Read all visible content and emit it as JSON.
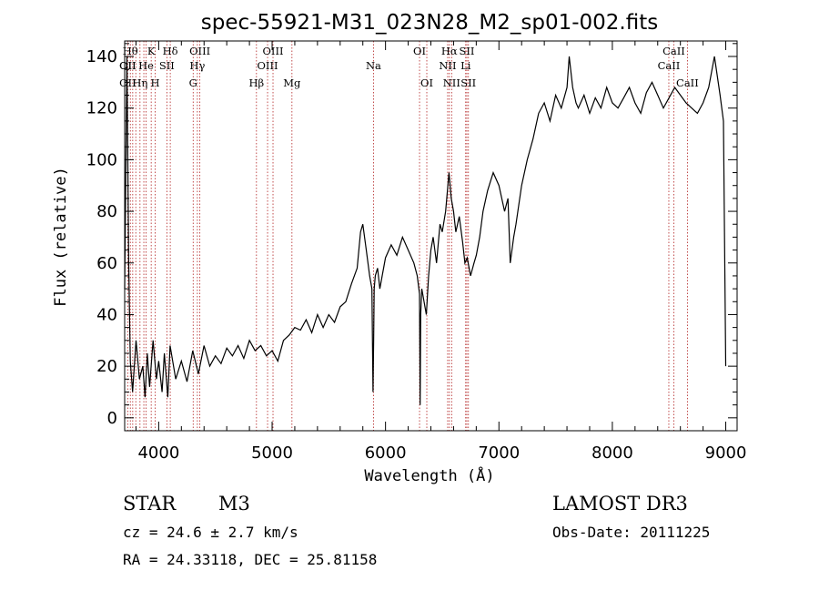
{
  "chart_data": {
    "type": "line",
    "title": "spec-55921-M31_023N28_M2_sp01-002.fits",
    "xlabel": "Wavelength (Å)",
    "ylabel": "Flux (relative)",
    "xlim": [
      3700,
      9100
    ],
    "ylim": [
      -5,
      146
    ],
    "grid": false,
    "xticks": [
      "4000",
      "5000",
      "6000",
      "7000",
      "8000",
      "9000"
    ],
    "yticks": [
      "0",
      "20",
      "40",
      "60",
      "80",
      "100",
      "120",
      "140"
    ],
    "x_tick_values": [
      4000,
      5000,
      6000,
      7000,
      8000,
      9000
    ],
    "y_tick_values": [
      0,
      20,
      40,
      60,
      80,
      100,
      120,
      140
    ],
    "line_color": "#000000",
    "marker_color": "#b22222",
    "series": [
      {
        "x": [
          3700,
          3720,
          3735,
          3750,
          3770,
          3800,
          3830,
          3860,
          3880,
          3900,
          3920,
          3950,
          3980,
          4000,
          4030,
          4050,
          4080,
          4100,
          4150,
          4200,
          4250,
          4300,
          4350,
          4400,
          4450,
          4500,
          4550,
          4600,
          4650,
          4700,
          4750,
          4800,
          4850,
          4900,
          4950,
          5000,
          5050,
          5100,
          5150,
          5200,
          5250,
          5300,
          5350,
          5400,
          5450,
          5500,
          5550,
          5600,
          5650,
          5700,
          5750,
          5780,
          5800,
          5830,
          5860,
          5880,
          5890,
          5895,
          5900,
          5910,
          5930,
          5950,
          6000,
          6050,
          6100,
          6150,
          6200,
          6250,
          6280,
          6300,
          6305,
          6310,
          6320,
          6340,
          6360,
          6380,
          6400,
          6420,
          6450,
          6480,
          6500,
          6530,
          6560,
          6580,
          6600,
          6620,
          6650,
          6680,
          6700,
          6720,
          6750,
          6780,
          6800,
          6830,
          6860,
          6900,
          6950,
          7000,
          7050,
          7080,
          7100,
          7130,
          7150,
          7200,
          7250,
          7300,
          7350,
          7400,
          7450,
          7500,
          7550,
          7600,
          7620,
          7650,
          7680,
          7700,
          7750,
          7800,
          7850,
          7900,
          7950,
          8000,
          8050,
          8100,
          8150,
          8200,
          8250,
          8300,
          8350,
          8400,
          8450,
          8500,
          8550,
          8600,
          8650,
          8700,
          8750,
          8800,
          8850,
          8900,
          8950,
          8980,
          9000
        ],
        "y": [
          50,
          140,
          60,
          22,
          10,
          30,
          15,
          20,
          8,
          25,
          12,
          30,
          15,
          22,
          10,
          25,
          8,
          28,
          15,
          22,
          14,
          26,
          17,
          28,
          20,
          24,
          21,
          27,
          24,
          28,
          23,
          30,
          26,
          28,
          24,
          26,
          22,
          30,
          32,
          35,
          34,
          38,
          33,
          40,
          35,
          40,
          37,
          43,
          45,
          52,
          58,
          72,
          75,
          65,
          55,
          50,
          10,
          30,
          50,
          55,
          58,
          50,
          62,
          67,
          63,
          70,
          65,
          60,
          55,
          48,
          5,
          40,
          50,
          45,
          40,
          55,
          65,
          70,
          60,
          75,
          72,
          80,
          95,
          85,
          80,
          72,
          78,
          68,
          60,
          62,
          55,
          60,
          63,
          70,
          80,
          88,
          95,
          90,
          80,
          85,
          60,
          70,
          75,
          90,
          100,
          108,
          118,
          122,
          115,
          125,
          120,
          128,
          140,
          128,
          122,
          120,
          125,
          118,
          124,
          120,
          128,
          122,
          120,
          124,
          128,
          122,
          118,
          126,
          130,
          125,
          120,
          124,
          128,
          125,
          122,
          120,
          118,
          122,
          128,
          140,
          125,
          115,
          20
        ]
      }
    ],
    "line_markers": [
      {
        "x": 3727,
        "top": "OII",
        "row": 1
      },
      {
        "x": 3750,
        "top": "Hθ",
        "row": 0
      },
      {
        "x": 3771,
        "top": "",
        "row": 2
      },
      {
        "x": 3798,
        "top": "",
        "row": 2
      },
      {
        "x": 3835,
        "top": "",
        "row": 2
      },
      {
        "x": 3869,
        "top": "",
        "row": 1
      },
      {
        "x": 3889,
        "top": "",
        "row": 2
      },
      {
        "x": 3934,
        "top": "K",
        "row": 0
      },
      {
        "x": 3969,
        "top": "",
        "row": 2
      },
      {
        "x": 4072,
        "top": "",
        "row": 1
      },
      {
        "x": 4102,
        "top": "Hδ",
        "row": 0
      },
      {
        "x": 4304,
        "top": "G",
        "row": 2
      },
      {
        "x": 4341,
        "top": "Hγ",
        "row": 1
      },
      {
        "x": 4363,
        "top": "OIII",
        "row": 0
      },
      {
        "x": 4862,
        "top": "Hβ",
        "row": 2
      },
      {
        "x": 4960,
        "top": "OIII",
        "row": 1
      },
      {
        "x": 5008,
        "top": "OIII",
        "row": 0
      },
      {
        "x": 5175,
        "top": "Mg",
        "row": 2
      },
      {
        "x": 5894,
        "top": "Na",
        "row": 1
      },
      {
        "x": 6300,
        "top": "OI",
        "row": 0
      },
      {
        "x": 6364,
        "top": "OI",
        "row": 2
      },
      {
        "x": 6548,
        "top": "NII",
        "row": 1
      },
      {
        "x": 6563,
        "top": "Hα",
        "row": 0
      },
      {
        "x": 6583,
        "top": "NII",
        "row": 2
      },
      {
        "x": 6707,
        "top": "Li",
        "row": 1
      },
      {
        "x": 6717,
        "top": "SII",
        "row": 0
      },
      {
        "x": 6731,
        "top": "SII",
        "row": 2
      },
      {
        "x": 8498,
        "top": "CaII",
        "row": 1
      },
      {
        "x": 8542,
        "top": "CaII",
        "row": 0
      },
      {
        "x": 8662,
        "top": "CaII",
        "row": 2
      }
    ],
    "annotations": [
      {
        "text": "OII",
        "x": 3727,
        "row": 1
      },
      {
        "text": "OII",
        "x": 3727,
        "row": 2
      },
      {
        "text": "Hη",
        "x": 3835,
        "row": 2
      },
      {
        "text": "He",
        "x": 3889,
        "row": 1
      },
      {
        "text": "H",
        "x": 3969,
        "row": 2
      },
      {
        "text": "SII",
        "x": 4072,
        "row": 1
      }
    ]
  },
  "footer": {
    "class": "STAR",
    "subclass": "M3",
    "survey": "LAMOST DR3",
    "redshift": "cz = 24.6 ± 2.7 km/s",
    "obsdate": "Obs-Date: 20111225",
    "coords": "RA =  24.33118, DEC =  25.81158"
  }
}
